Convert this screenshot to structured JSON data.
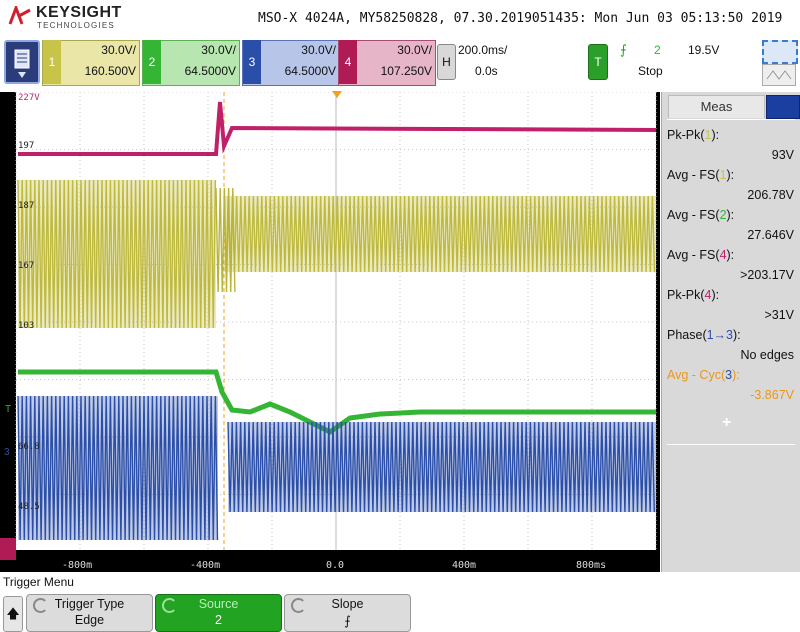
{
  "header": {
    "brand": "KEYSIGHT",
    "brand_sub": "TECHNOLOGIES",
    "instrument_info": "MSO-X 4024A, MY58250828, 07.30.2019051435: Mon Jun 03 05:13:50 2019"
  },
  "channels": [
    {
      "num": "1",
      "scale": "30.0V/",
      "offset": "160.500V",
      "color": "#c8c44a",
      "box_bg": "#e9e6a8"
    },
    {
      "num": "2",
      "scale": "30.0V/",
      "offset": "64.5000V",
      "color": "#34b534",
      "box_bg": "#b8e6b0"
    },
    {
      "num": "3",
      "scale": "30.0V/",
      "offset": "64.5000V",
      "color": "#2b4ea8",
      "box_bg": "#b7c5e8"
    },
    {
      "num": "4",
      "scale": "30.0V/",
      "offset": "107.250V",
      "color": "#b01a55",
      "box_bg": "#e6b6c8"
    }
  ],
  "horizontal": {
    "label": "H",
    "scale": "200.0ms/",
    "delay": "0.0s"
  },
  "trigger": {
    "label": "T",
    "source": "2",
    "level": "19.5V",
    "status": "Stop"
  },
  "graticule": {
    "ch4_level_label": "227V",
    "marker_labels": [
      "197",
      "187",
      "167",
      "103",
      "66.8",
      "48.5"
    ],
    "left_markers": [
      "T",
      "3"
    ],
    "time_labels": [
      "-800m",
      "-400m",
      "0.0",
      "400m",
      "800ms"
    ]
  },
  "measurements": {
    "tab_label": "Meas",
    "items": [
      {
        "label_pre": "Pk-Pk(",
        "src": "1",
        "label_post": "):",
        "value": "93V",
        "src_color": "#c8c44a"
      },
      {
        "label_pre": "Avg - FS(",
        "src": "1",
        "label_post": "):",
        "value": "206.78V",
        "src_color": "#c8c44a"
      },
      {
        "label_pre": "Avg - FS(",
        "src": "2",
        "label_post": "):",
        "value": "27.646V",
        "src_color": "#34b534"
      },
      {
        "label_pre": "Avg - FS(",
        "src": "4",
        "label_post": "):",
        "value": ">203.17V",
        "src_color": "#c0206a"
      },
      {
        "label_pre": "Pk-Pk(",
        "src": "4",
        "label_post": "):",
        "value": ">31V",
        "src_color": "#c0206a"
      },
      {
        "label_pre": "Phase(",
        "src": "1→3",
        "label_post": "):",
        "value": "No edges",
        "src_color": "#2b4ea8"
      },
      {
        "label_pre": "Avg - Cyc(",
        "src": "3",
        "label_post": "):",
        "value": "-3.867V",
        "src_color": "#2b4ea8",
        "highlight": "#e8961e"
      }
    ]
  },
  "softkeys": {
    "menu_title": "Trigger Menu",
    "keys": [
      {
        "top": "Trigger Type",
        "bottom": "Edge",
        "active": false
      },
      {
        "top": "Source",
        "bottom": "2",
        "active": true
      },
      {
        "top": "Slope",
        "bottom": "⨍",
        "active": false
      }
    ]
  }
}
